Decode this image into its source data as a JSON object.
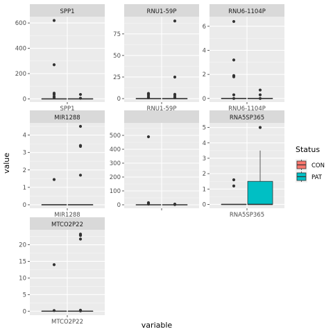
{
  "chart_data": {
    "type": "boxplot",
    "xlabel": "variable",
    "ylabel": "value",
    "legend": {
      "title": "Status",
      "position": "right",
      "entries": [
        {
          "name": "CON",
          "color": "#F8766D"
        },
        {
          "name": "PAT",
          "color": "#00BFC4"
        }
      ]
    },
    "panels": [
      {
        "title": "SPP1",
        "x_tick": "SPP1",
        "ylim": [
          -25,
          650
        ],
        "y_ticks": [
          0,
          200,
          400,
          600
        ],
        "groups": [
          {
            "status": "CON",
            "q1": 0,
            "median": 0,
            "q3": 0,
            "whisker_low": 0,
            "whisker_high": 0,
            "outliers": [
              620,
              270,
              45,
              35,
              20,
              10
            ]
          },
          {
            "status": "PAT",
            "q1": 0,
            "median": 0,
            "q3": 0,
            "whisker_low": 0,
            "whisker_high": 0,
            "outliers": [
              35,
              5
            ]
          }
        ]
      },
      {
        "title": "RNU1-59P",
        "x_tick": "RNU1-59P",
        "ylim": [
          -4,
          95
        ],
        "y_ticks": [
          0,
          25,
          50,
          75
        ],
        "groups": [
          {
            "status": "CON",
            "q1": 0,
            "median": 0,
            "q3": 0,
            "whisker_low": 0,
            "whisker_high": 0,
            "outliers": [
              6,
              5,
              4,
              2,
              1
            ]
          },
          {
            "status": "PAT",
            "q1": 0,
            "median": 0,
            "q3": 0,
            "whisker_low": 0,
            "whisker_high": 0,
            "outliers": [
              90,
              25,
              5,
              4,
              2,
              1
            ]
          }
        ]
      },
      {
        "title": "RNU6-1104P",
        "x_tick": "RNU6-1104P",
        "ylim": [
          -0.3,
          6.8
        ],
        "y_ticks": [
          0,
          2,
          4,
          6
        ],
        "groups": [
          {
            "status": "CON",
            "q1": 0,
            "median": 0,
            "q3": 0,
            "whisker_low": 0,
            "whisker_high": 0,
            "outliers": [
              6.4,
              3.2,
              1.9,
              1.8,
              0.3,
              0
            ]
          },
          {
            "status": "PAT",
            "q1": 0,
            "median": 0,
            "q3": 0,
            "whisker_low": 0,
            "whisker_high": 0,
            "outliers": [
              0.7,
              0.3,
              0
            ]
          }
        ]
      },
      {
        "title": "MIR1288",
        "x_tick": "MIR1288",
        "ylim": [
          -0.2,
          4.7
        ],
        "y_ticks": [
          0,
          1,
          2,
          3,
          4
        ],
        "groups": [
          {
            "status": "CON",
            "q1": 0,
            "median": 0,
            "q3": 0,
            "whisker_low": 0,
            "whisker_high": 0,
            "outliers": [
              1.45
            ]
          },
          {
            "status": "PAT",
            "q1": 0,
            "median": 0,
            "q3": 0,
            "whisker_low": 0,
            "whisker_high": 0,
            "outliers": [
              4.5,
              3.4,
              3.35,
              1.7
            ]
          }
        ]
      },
      {
        "title": "",
        "x_tick": "",
        "ylim": [
          -25,
          590
        ],
        "y_ticks": [
          0,
          100,
          200,
          300,
          400,
          500
        ],
        "groups": [
          {
            "status": "CON",
            "q1": 0,
            "median": 0,
            "q3": 0,
            "whisker_low": 0,
            "whisker_high": 0,
            "outliers": [
              490,
              15,
              10,
              5
            ]
          },
          {
            "status": "PAT",
            "q1": 0,
            "median": 0,
            "q3": 0,
            "whisker_low": 0,
            "whisker_high": 0,
            "outliers": [
              5,
              2
            ]
          }
        ]
      },
      {
        "title": "RNA5SP365",
        "x_tick": "RNA5SP365",
        "ylim": [
          -0.25,
          5.3
        ],
        "y_ticks": [
          0,
          1,
          2,
          3,
          4,
          5
        ],
        "groups": [
          {
            "status": "CON",
            "q1": 0,
            "median": 0,
            "q3": 0,
            "whisker_low": 0,
            "whisker_high": 0,
            "outliers": [
              1.6,
              1.2
            ]
          },
          {
            "status": "PAT",
            "q1": 0,
            "median": 0,
            "q3": 1.5,
            "whisker_low": 0,
            "whisker_high": 3.5,
            "outliers": [
              5
            ]
          }
        ]
      },
      {
        "title": "MTCO2P22",
        "x_tick": "MTCO2P22",
        "ylim": [
          -1.2,
          24.5
        ],
        "y_ticks": [
          0,
          5,
          10,
          15,
          20
        ],
        "groups": [
          {
            "status": "CON",
            "q1": 0,
            "median": 0,
            "q3": 0,
            "whisker_low": 0,
            "whisker_high": 0,
            "outliers": [
              14,
              0.2
            ]
          },
          {
            "status": "PAT",
            "q1": 0,
            "median": 0,
            "q3": 0,
            "whisker_low": 0,
            "whisker_high": 0,
            "outliers": [
              23.2,
              22.8,
              21.7,
              0.3,
              0.1
            ]
          }
        ]
      }
    ]
  }
}
